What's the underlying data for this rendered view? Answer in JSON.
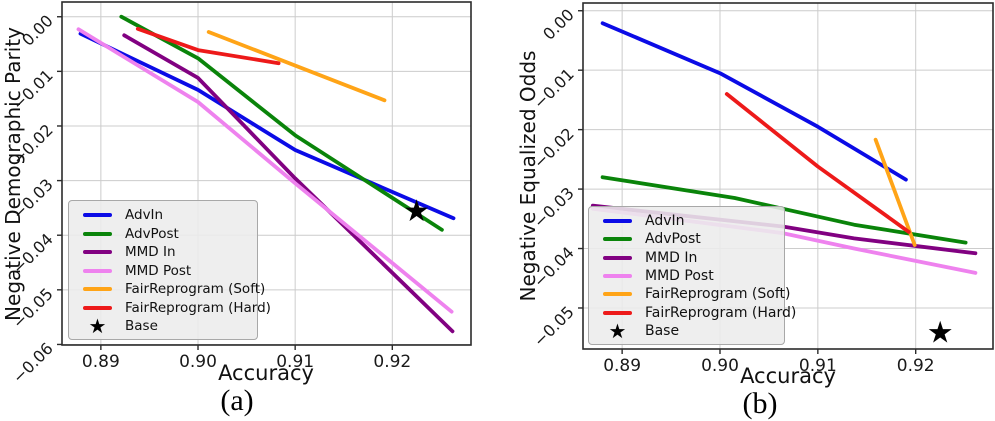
{
  "figure": {
    "background": "#ffffff",
    "grid_color": "#cccccc",
    "spine_color": "#2b2b2b"
  },
  "legend": {
    "items": [
      {
        "label": "AdvIn",
        "color": "#0b0be6",
        "marker": "line"
      },
      {
        "label": "AdvPost",
        "color": "#0a840a",
        "marker": "line"
      },
      {
        "label": "MMD In",
        "color": "#810181",
        "marker": "line"
      },
      {
        "label": "MMD Post",
        "color": "#ee82ee",
        "marker": "line"
      },
      {
        "label": "FairReprogram (Soft)",
        "color": "#ffa417",
        "marker": "line"
      },
      {
        "label": "FairReprogram (Hard)",
        "color": "#ed1a1a",
        "marker": "line"
      },
      {
        "label": "Base",
        "color": "#000000",
        "marker": "star"
      }
    ],
    "position": "lower left"
  },
  "chart_data": [
    {
      "type": "line",
      "caption": "(a)",
      "xlabel": "Accuracy",
      "ylabel": "Negative Demographic Parity",
      "xlim": [
        0.886,
        0.9281
      ],
      "ylim": [
        -0.0601,
        0.0027
      ],
      "grid": true,
      "xticks": [
        0.89,
        0.9,
        0.91,
        0.92
      ],
      "xtick_labels": [
        "0.89",
        "0.90",
        "0.91",
        "0.92"
      ],
      "yticks": [
        0.0,
        -0.01,
        -0.02,
        -0.03,
        -0.04,
        -0.05,
        -0.06
      ],
      "ytick_labels": [
        "0.00",
        "−0.01",
        "−0.02",
        "−0.03",
        "−0.04",
        "−0.05",
        "−0.06"
      ],
      "series": [
        {
          "name": "AdvIn",
          "color": "#0b0be6",
          "points": [
            [
              0.8879,
              -0.0031
            ],
            [
              0.9,
              -0.0134
            ],
            [
              0.91,
              -0.0244
            ],
            [
              0.9263,
              -0.0369
            ]
          ]
        },
        {
          "name": "AdvPost",
          "color": "#0a840a",
          "points": [
            [
              0.8921,
              0.0
            ],
            [
              0.9,
              -0.0076
            ],
            [
              0.91,
              -0.0217
            ],
            [
              0.9251,
              -0.039
            ]
          ]
        },
        {
          "name": "MMD In",
          "color": "#810181",
          "points": [
            [
              0.8924,
              -0.0034
            ],
            [
              0.9,
              -0.0112
            ],
            [
              0.91,
              -0.0296
            ],
            [
              0.9262,
              -0.0576
            ]
          ]
        },
        {
          "name": "MMD Post",
          "color": "#ee82ee",
          "points": [
            [
              0.8877,
              -0.0023
            ],
            [
              0.9,
              -0.0156
            ],
            [
              0.91,
              -0.0305
            ],
            [
              0.9261,
              -0.054
            ]
          ]
        },
        {
          "name": "FairReprogram (Soft)",
          "color": "#ffa417",
          "points": [
            [
              0.9011,
              -0.0028
            ],
            [
              0.9192,
              -0.0153
            ]
          ]
        },
        {
          "name": "FairReprogram (Hard)",
          "color": "#ed1a1a",
          "points": [
            [
              0.8938,
              -0.0022
            ],
            [
              0.9,
              -0.0061
            ],
            [
              0.9083,
              -0.0085
            ]
          ]
        }
      ],
      "markers": [
        {
          "name": "Base",
          "shape": "star",
          "color": "#000000",
          "x": 0.9225,
          "y": -0.0357
        }
      ]
    },
    {
      "type": "line",
      "caption": "(b)",
      "xlabel": "Accuracy",
      "ylabel": "Negative Equalized Odds",
      "xlim": [
        0.886,
        0.9279
      ],
      "ylim": [
        -0.0569,
        0.0013
      ],
      "grid": true,
      "xticks": [
        0.89,
        0.9,
        0.91,
        0.92
      ],
      "xtick_labels": [
        "0.89",
        "0.90",
        "0.91",
        "0.92"
      ],
      "yticks": [
        0.0,
        -0.01,
        -0.02,
        -0.03,
        -0.04,
        -0.05
      ],
      "ytick_labels": [
        "0.00",
        "−0.01",
        "−0.02",
        "−0.03",
        "−0.04",
        "−0.05"
      ],
      "series": [
        {
          "name": "AdvIn",
          "color": "#0b0be6",
          "points": [
            [
              0.888,
              -0.0021
            ],
            [
              0.9,
              -0.0105
            ],
            [
              0.91,
              -0.0195
            ],
            [
              0.919,
              -0.0284
            ]
          ]
        },
        {
          "name": "AdvPost",
          "color": "#0a840a",
          "points": [
            [
              0.888,
              -0.028
            ],
            [
              0.9015,
              -0.0315
            ],
            [
              0.9137,
              -0.036
            ],
            [
              0.9251,
              -0.039
            ]
          ]
        },
        {
          "name": "MMD In",
          "color": "#810181",
          "points": [
            [
              0.887,
              -0.0328
            ],
            [
              0.9064,
              -0.0363
            ],
            [
              0.9137,
              -0.0383
            ],
            [
              0.9261,
              -0.0408
            ]
          ]
        },
        {
          "name": "MMD Post",
          "color": "#ee82ee",
          "points": [
            [
              0.887,
              -0.0333
            ],
            [
              0.9064,
              -0.0374
            ],
            [
              0.9137,
              -0.04
            ],
            [
              0.9261,
              -0.0441
            ]
          ]
        },
        {
          "name": "FairReprogram (Soft)",
          "color": "#ffa417",
          "points": [
            [
              0.9159,
              -0.0217
            ],
            [
              0.9199,
              -0.0394
            ]
          ]
        },
        {
          "name": "FairReprogram (Hard)",
          "color": "#ed1a1a",
          "points": [
            [
              0.9007,
              -0.014
            ],
            [
              0.91,
              -0.0262
            ],
            [
              0.9193,
              -0.0372
            ]
          ]
        }
      ],
      "markers": [
        {
          "name": "Base",
          "shape": "star",
          "color": "#000000",
          "x": 0.9225,
          "y": -0.0542
        }
      ]
    }
  ]
}
